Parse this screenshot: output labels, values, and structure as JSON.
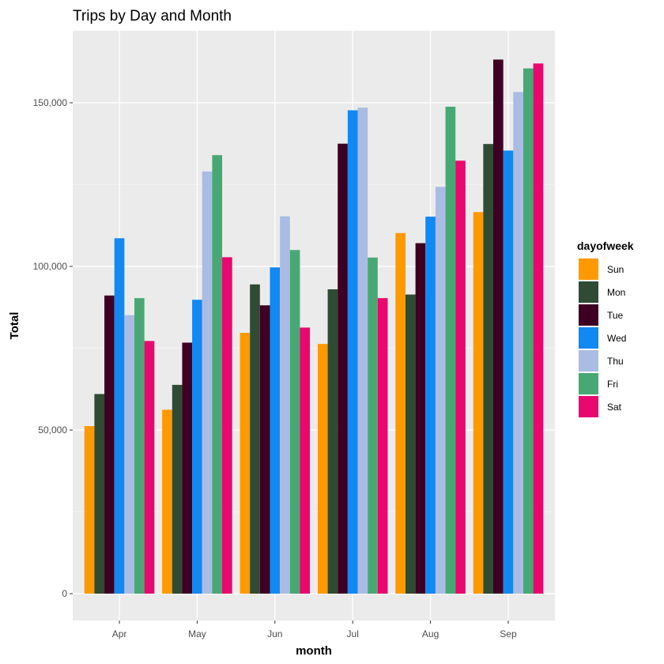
{
  "chart_data": {
    "type": "bar",
    "title": "Trips by Day and Month",
    "xlabel": "month",
    "ylabel": "Total",
    "categories": [
      "Apr",
      "May",
      "Jun",
      "Jul",
      "Aug",
      "Sep"
    ],
    "ylim": [
      0,
      168000
    ],
    "yticks": [
      0,
      50000,
      100000,
      150000
    ],
    "ytick_labels": [
      "0",
      "50,000",
      "100,000",
      "150,000"
    ],
    "grid": true,
    "legend": {
      "title": "dayofweek",
      "position": "right"
    },
    "series": [
      {
        "name": "Sun",
        "color": "#FF9900",
        "values": [
          51200,
          56200,
          79700,
          76300,
          110200,
          116600
        ]
      },
      {
        "name": "Mon",
        "color": "#2F4B33",
        "values": [
          61000,
          63800,
          94500,
          93000,
          91400,
          137400
        ]
      },
      {
        "name": "Tue",
        "color": "#3D0023",
        "values": [
          91100,
          76700,
          88100,
          137500,
          107100,
          163200
        ]
      },
      {
        "name": "Wed",
        "color": "#1188F2",
        "values": [
          108600,
          89800,
          99700,
          147700,
          115200,
          135400
        ]
      },
      {
        "name": "Thu",
        "color": "#AABCE3",
        "values": [
          85100,
          129000,
          115300,
          148500,
          124300,
          153300
        ]
      },
      {
        "name": "Fri",
        "color": "#48A874",
        "values": [
          90300,
          134000,
          105000,
          102700,
          148800,
          160500
        ]
      },
      {
        "name": "Sat",
        "color": "#E8086E",
        "values": [
          77200,
          102800,
          81300,
          90300,
          132300,
          162000
        ]
      }
    ]
  }
}
